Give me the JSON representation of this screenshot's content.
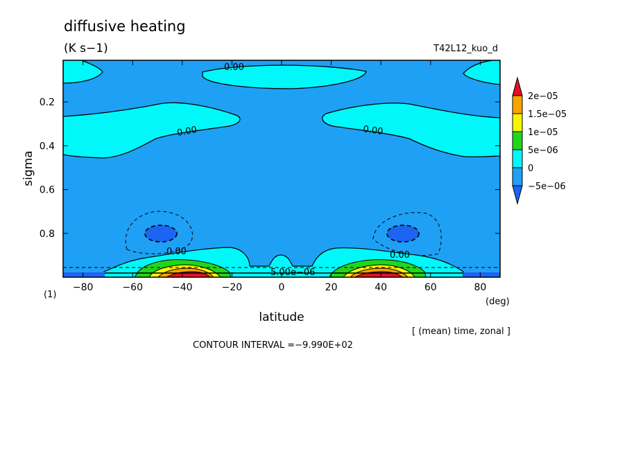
{
  "chart_data": {
    "type": "contour",
    "title": "diffusive heating",
    "units": "(K s−1)",
    "run_name": "T42L12_kuo_d",
    "xlabel": "latitude",
    "x_unit": "(deg)",
    "ylabel": "sigma",
    "page_marker": "(1)",
    "averaging_note": "[ (mean) time, zonal ]",
    "contour_interval_note": "CONTOUR INTERVAL =−9.990E+02",
    "xlim": [
      -88,
      88
    ],
    "ylim": [
      1.0,
      0.01
    ],
    "y_reversed": true,
    "x_ticks": [
      -80,
      -60,
      -40,
      -20,
      0,
      20,
      40,
      60,
      80
    ],
    "x_tick_labels": [
      "−80",
      "−60",
      "−40",
      "−20",
      "0",
      "20",
      "40",
      "60",
      "80"
    ],
    "y_ticks": [
      0.2,
      0.4,
      0.6,
      0.8
    ],
    "y_tick_labels": [
      "0.2",
      "0.4",
      "0.6",
      "0.8"
    ],
    "contour_labels": [
      "0.00",
      "0.00",
      "0.00",
      "0.00",
      "0.00",
      "5.00e−06"
    ],
    "colorbar": {
      "levels": [
        -5e-06,
        0,
        5e-06,
        1e-05,
        1.5e-05,
        2e-05
      ],
      "labels": [
        "−5e−06",
        "0",
        "5e−06",
        "1e−05",
        "1.5e−05",
        "2e−05"
      ],
      "colors": [
        "#1c64f2",
        "#1ea0f5",
        "#00f8fa",
        "#22d61e",
        "#f8f500",
        "#f8a300",
        "#e41020"
      ]
    },
    "colors": {
      "below_minus5e-06": "#1c64f2",
      "minus5e-06_to_0": "#1ea0f5",
      "0_to_5e-06": "#00f8fa",
      "5e-06_to_1e-05": "#22d61e",
      "1e-05_to_1.5e-05": "#f8f500",
      "1.5e-05_to_2e-05": "#f8a300",
      "above_2e-05": "#e41020"
    }
  }
}
